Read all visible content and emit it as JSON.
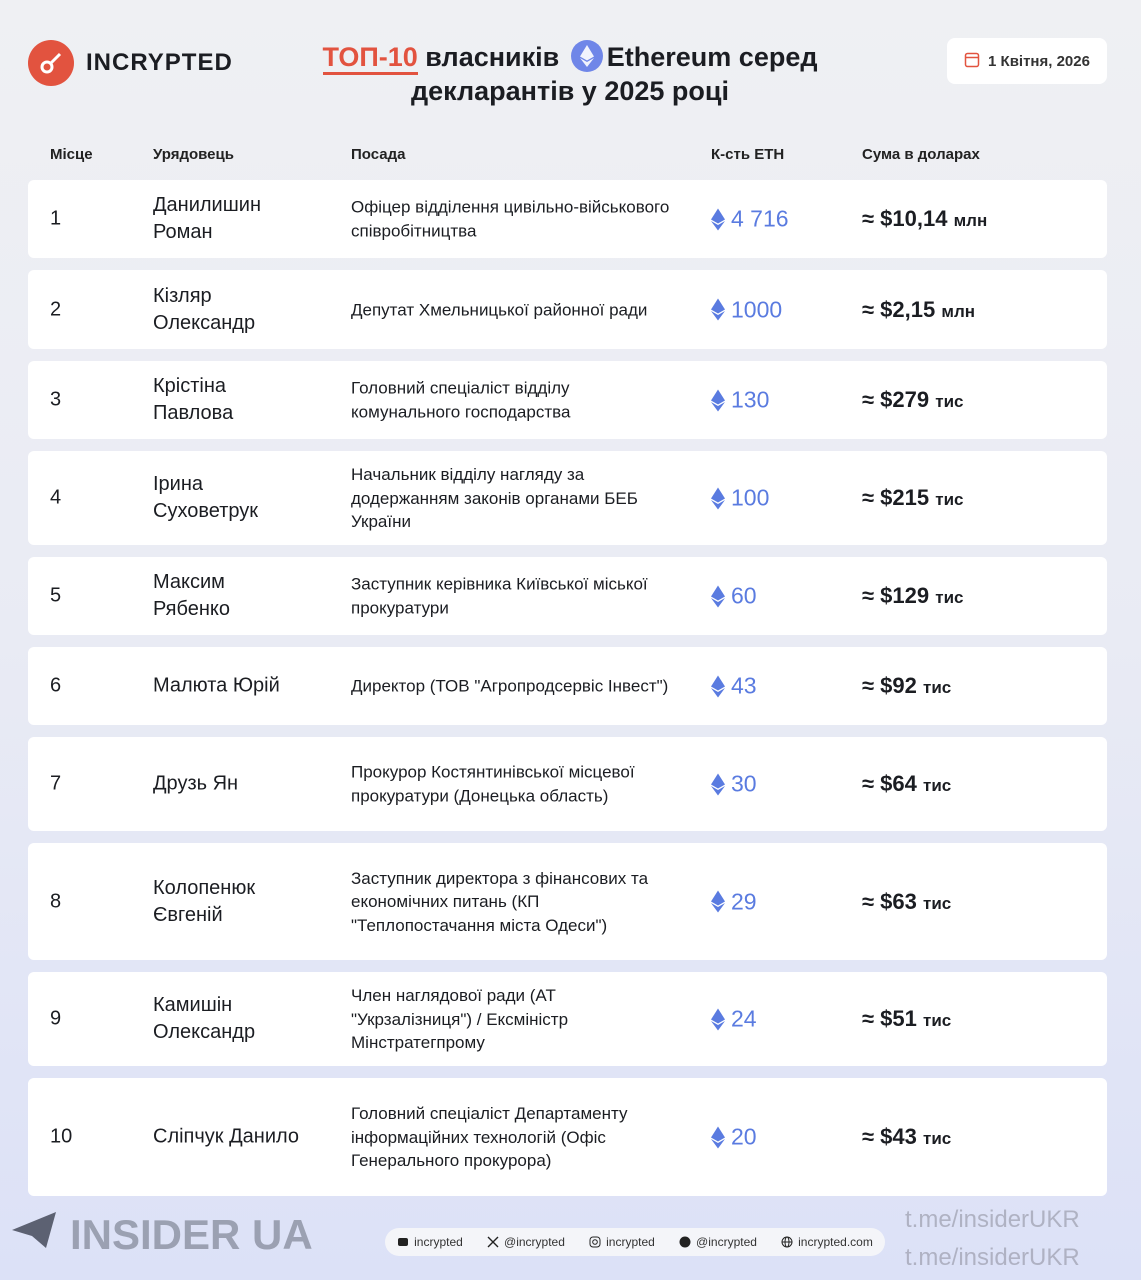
{
  "brand": {
    "name": "INCRYPTED",
    "accent": "#e2533f",
    "eth_color": "#5a7be0"
  },
  "title": {
    "accent": "ТОП-10",
    "line1_rest": "власників",
    "line1_end": "Ethereum серед",
    "line2": "декларантів у 2025 році"
  },
  "date": "1 Квітня, 2026",
  "columns": [
    "Місце",
    "Урядовець",
    "Посада",
    "К-сть ETH",
    "Сума в доларах"
  ],
  "rows": [
    {
      "place": "1",
      "name": "Данилишин Роман",
      "post": "Офіцер відділення цивільно-військового співробітництва",
      "eth": "4 716",
      "sum": "≈ $10,14",
      "unit": "млн"
    },
    {
      "place": "2",
      "name": "Кізляр Олександр",
      "post": "Депутат Хмельницької районної ради",
      "eth": "1000",
      "sum": "≈ $2,15",
      "unit": "млн"
    },
    {
      "place": "3",
      "name": "Крістіна Павлова",
      "post": "Головний спеціаліст відділу комунального господарства",
      "eth": "130",
      "sum": "≈ $279",
      "unit": "тис"
    },
    {
      "place": "4",
      "name": "Ірина Суховетрук",
      "post": "Начальник відділу нагляду за додержанням законів органами БЕБ України",
      "eth": "100",
      "sum": "≈ $215",
      "unit": "тис"
    },
    {
      "place": "5",
      "name": "Максим Рябенко",
      "post": "Заступник керівника Київської міської прокуратури",
      "eth": "60",
      "sum": "≈ $129",
      "unit": "тис"
    },
    {
      "place": "6",
      "name": "Малюта Юрій",
      "post": "Директор (ТОВ \"Агропродсервіс Інвест\")",
      "eth": "43",
      "sum": "≈ $92",
      "unit": "тис"
    },
    {
      "place": "7",
      "name": "Друзь Ян",
      "post": "Прокурор Костянтинівської місцевої прокуратури (Донецька область)",
      "eth": "30",
      "sum": "≈ $64",
      "unit": "тис"
    },
    {
      "place": "8",
      "name": "Колопенюк Євгеній",
      "post": "Заступник директора з фінансових та економічних питань (КП \"Теплопостачання міста Одеси\")",
      "eth": "29",
      "sum": "≈ $63",
      "unit": "тис"
    },
    {
      "place": "9",
      "name": "Камишін Олександр",
      "post": "Член наглядової ради (АТ \"Укрзалізниця\") / Ексміністр Мінстратегпрому",
      "eth": "24",
      "sum": "≈ $51",
      "unit": "тис"
    },
    {
      "place": "10",
      "name": "Сліпчук Данило",
      "post": "Головний спеціаліст Департаменту інформаційних технологій (Офіс Генерального прокурора)",
      "eth": "20",
      "sum": "≈ $43",
      "unit": "тис"
    }
  ],
  "social": [
    {
      "icon": "youtube-icon",
      "label": "incrypted"
    },
    {
      "icon": "x-icon",
      "label": "@incrypted"
    },
    {
      "icon": "instagram-icon",
      "label": "incrypted"
    },
    {
      "icon": "telegram-icon",
      "label": "@incrypted"
    },
    {
      "icon": "globe-icon",
      "label": "incrypted.com"
    }
  ],
  "watermark": {
    "handle": "t.me/insiderUKR",
    "name": "INSIDER UA"
  }
}
